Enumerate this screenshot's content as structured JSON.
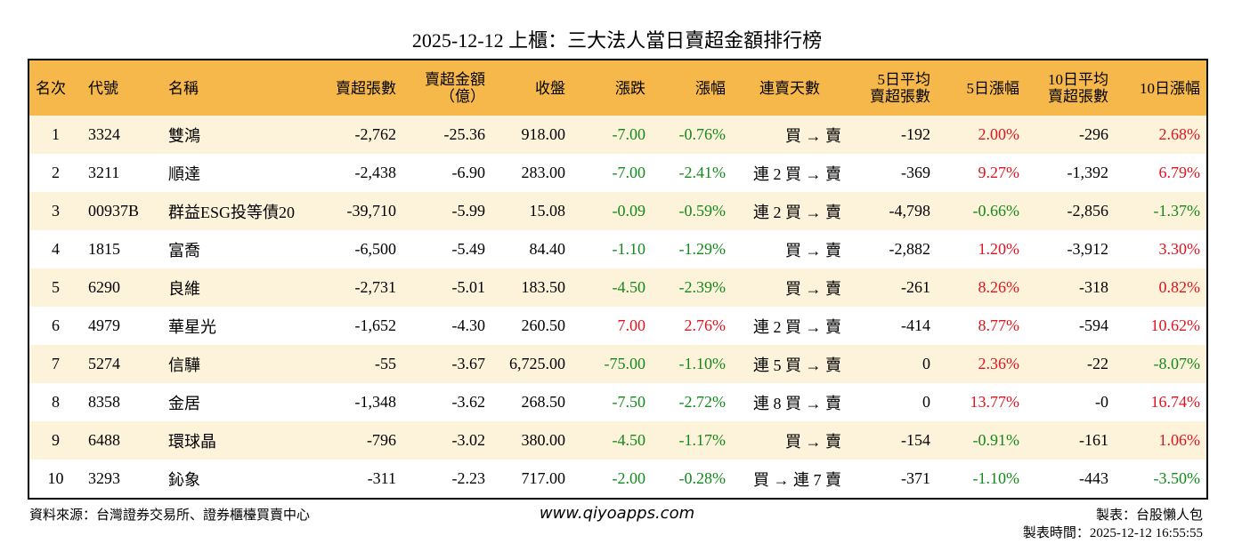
{
  "title": "2025-12-12 上櫃：三大法人當日賣超金額排行榜",
  "table": {
    "header": [
      "名次",
      "代號",
      "名稱",
      "賣超張數",
      "賣超金額\n（億）",
      "收盤",
      "漲跌",
      "漲幅",
      "連賣天數",
      "5日平均\n賣超張數",
      "5日漲幅",
      "10日平均\n賣超張數",
      "10日漲幅"
    ],
    "rows": [
      [
        "1",
        "3324",
        "雙鴻",
        "-2,762",
        "-25.36",
        "918.00",
        "-7.00",
        "-0.76%",
        "買 → 賣",
        "-192",
        "2.00%",
        "-296",
        "2.68%"
      ],
      [
        "2",
        "3211",
        "順達",
        "-2,438",
        "-6.90",
        "283.00",
        "-7.00",
        "-2.41%",
        "連 2 買 → 賣",
        "-369",
        "9.27%",
        "-1,392",
        "6.79%"
      ],
      [
        "3",
        "00937B",
        "群益ESG投等債20",
        "-39,710",
        "-5.99",
        "15.08",
        "-0.09",
        "-0.59%",
        "連 2 買 → 賣",
        "-4,798",
        "-0.66%",
        "-2,856",
        "-1.37%"
      ],
      [
        "4",
        "1815",
        "富喬",
        "-6,500",
        "-5.49",
        "84.40",
        "-1.10",
        "-1.29%",
        "買 → 賣",
        "-2,882",
        "1.20%",
        "-3,912",
        "3.30%"
      ],
      [
        "5",
        "6290",
        "良維",
        "-2,731",
        "-5.01",
        "183.50",
        "-4.50",
        "-2.39%",
        "買 → 賣",
        "-261",
        "8.26%",
        "-318",
        "0.82%"
      ],
      [
        "6",
        "4979",
        "華星光",
        "-1,652",
        "-4.30",
        "260.50",
        "7.00",
        "2.76%",
        "連 2 買 → 賣",
        "-414",
        "8.77%",
        "-594",
        "10.62%"
      ],
      [
        "7",
        "5274",
        "信驊",
        "-55",
        "-3.67",
        "6,725.00",
        "-75.00",
        "-1.10%",
        "連 5 買 → 賣",
        "0",
        "2.36%",
        "-22",
        "-8.07%"
      ],
      [
        "8",
        "8358",
        "金居",
        "-1,348",
        "-3.62",
        "268.50",
        "-7.50",
        "-2.72%",
        "連 8 買 → 賣",
        "0",
        "13.77%",
        "-0",
        "16.74%"
      ],
      [
        "9",
        "6488",
        "環球晶",
        "-796",
        "-3.02",
        "380.00",
        "-4.50",
        "-1.17%",
        "買 → 賣",
        "-154",
        "-0.91%",
        "-161",
        "1.06%"
      ],
      [
        "10",
        "3293",
        "鈊象",
        "-311",
        "-2.23",
        "717.00",
        "-2.00",
        "-0.28%",
        "買 → 連 7 賣",
        "-371",
        "-1.10%",
        "-443",
        "-3.50%"
      ]
    ],
    "signed_columns": [
      6,
      7,
      10,
      12
    ]
  },
  "footer": {
    "source": "資料來源：台灣證券交易所、證券櫃檯買賣中心",
    "website": "www.qiyoapps.com",
    "author": "製表：台股懶人包",
    "time": "製表時間：2025-12-12 16:55:55"
  }
}
